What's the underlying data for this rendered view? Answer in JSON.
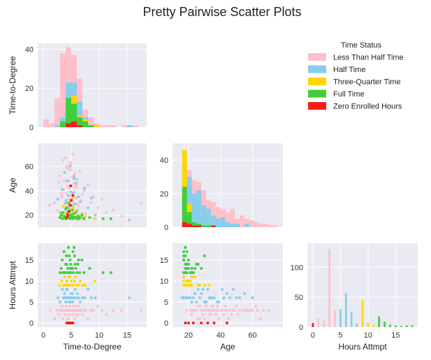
{
  "chart_data": {
    "type": "pairplot",
    "title": "Pretty Pairwise Scatter Plots",
    "variables": [
      "Time-to-Degree",
      "Age",
      "Hours Attmpt"
    ],
    "axis_ranges": {
      "Time-to-Degree": [
        -1,
        18.5
      ],
      "Age": [
        10,
        79
      ],
      "Hours Attmpt": [
        -1,
        19
      ]
    },
    "ticks": {
      "Time-to-Degree": [
        0,
        5,
        10,
        15
      ],
      "Age": [
        20,
        40,
        60
      ],
      "Hours Attmpt": [
        0,
        5,
        10,
        15
      ]
    },
    "grid": true,
    "legend": {
      "title": "Time Status",
      "placement": "top-right",
      "entries": [
        {
          "name": "Less Than Half Time",
          "color": "#ffc0cb"
        },
        {
          "name": "Half Time",
          "color": "#87ceeb"
        },
        {
          "name": "Three-Quarter Time",
          "color": "#ffd700"
        },
        {
          "name": "Full Time",
          "color": "#3ecf3e"
        },
        {
          "name": "Zero Enrolled Hours",
          "color": "#ff1a1a"
        }
      ]
    },
    "diagonal_histograms": {
      "Time-to-Degree": {
        "ylim": [
          0,
          43
        ],
        "yticks": [
          0,
          20,
          40
        ],
        "bins": [
          0,
          1,
          2,
          3,
          4,
          5,
          6,
          7,
          8,
          9,
          10,
          11,
          12,
          13,
          14,
          15,
          16,
          17,
          18
        ],
        "series": [
          {
            "name": "Less Than Half Time",
            "counts": [
              4,
              2,
              15,
              38,
              41,
              37,
              25,
              9,
              5,
              2,
              1,
              1,
              1,
              0,
              1,
              0,
              1,
              0
            ]
          },
          {
            "name": "Half Time",
            "counts": [
              0,
              0,
              1,
              5,
              23,
              23,
              13,
              5,
              1,
              0,
              0,
              0,
              0,
              0,
              0,
              1,
              0,
              0
            ]
          },
          {
            "name": "Three-Quarter Time",
            "counts": [
              0,
              0,
              0,
              1,
              9,
              16,
              6,
              4,
              0,
              1,
              0,
              0,
              0,
              0,
              0,
              0,
              0,
              0
            ]
          },
          {
            "name": "Full Time",
            "counts": [
              0,
              0,
              0,
              3,
              15,
              12,
              5,
              3,
              1,
              0,
              0,
              0,
              0,
              0,
              0,
              0,
              0,
              0
            ]
          },
          {
            "name": "Zero Enrolled Hours",
            "counts": [
              0,
              0,
              0,
              0,
              2,
              3,
              1,
              0,
              0,
              0,
              0,
              0,
              0,
              0,
              0,
              0,
              0,
              0
            ]
          }
        ]
      },
      "Age": {
        "ylim": [
          0,
          50
        ],
        "yticks": [
          0,
          20,
          40
        ],
        "bins": [
          16,
          19,
          22,
          25,
          28,
          31,
          34,
          37,
          40,
          43,
          46,
          49,
          52,
          55,
          58,
          61,
          64,
          67,
          70,
          73,
          76
        ],
        "series": [
          {
            "name": "Less Than Half Time",
            "counts": [
              38,
              34,
              28,
              27,
              22,
              16,
              15,
              12,
              11,
              9,
              11,
              5,
              7,
              5,
              4,
              3,
              2,
              2,
              1,
              1
            ]
          },
          {
            "name": "Half Time",
            "counts": [
              33,
              30,
              20,
              22,
              13,
              11,
              7,
              5,
              6,
              3,
              2,
              2,
              0,
              2,
              0,
              0,
              0,
              0,
              0,
              0
            ]
          },
          {
            "name": "Three-Quarter Time",
            "counts": [
              46,
              14,
              3,
              2,
              1,
              0,
              0,
              0,
              0,
              0,
              0,
              0,
              0,
              0,
              0,
              0,
              0,
              0,
              0,
              0
            ]
          },
          {
            "name": "Full Time",
            "counts": [
              24,
              9,
              3,
              2,
              1,
              1,
              0,
              0,
              0,
              0,
              0,
              0,
              0,
              0,
              0,
              0,
              0,
              0,
              0,
              0
            ]
          },
          {
            "name": "Zero Enrolled Hours",
            "counts": [
              3,
              2,
              1,
              1,
              0,
              0,
              1,
              0,
              0,
              0,
              0,
              0,
              0,
              0,
              0,
              0,
              0,
              0,
              0,
              0
            ]
          }
        ]
      },
      "Hours Attmpt": {
        "ylim": [
          0,
          140
        ],
        "yticks": [
          0,
          50,
          100
        ],
        "series": [
          {
            "name": "Less Than Half Time",
            "x": [
              1,
              2,
              3,
              4
            ],
            "counts": [
              15,
              12,
              130,
              28
            ]
          },
          {
            "name": "Half Time",
            "x": [
              5,
              6,
              7,
              8
            ],
            "counts": [
              30,
              57,
              26,
              6
            ]
          },
          {
            "name": "Three-Quarter Time",
            "x": [
              9,
              10,
              11
            ],
            "counts": [
              45,
              7,
              4
            ]
          },
          {
            "name": "Full Time",
            "x": [
              12,
              13,
              14,
              15,
              16,
              17,
              18
            ],
            "counts": [
              18,
              9,
              4,
              3,
              2,
              3,
              3
            ]
          },
          {
            "name": "Zero Enrolled Hours",
            "x": [
              0
            ],
            "counts": [
              7
            ]
          }
        ]
      }
    },
    "scatter": {
      "Less Than Half Time": {
        "ttd": [
          1.2,
          2.0,
          2.5,
          2.8,
          3.0,
          3.1,
          3.3,
          3.5,
          3.6,
          3.8,
          3.9,
          4.0,
          4.1,
          4.2,
          4.3,
          4.4,
          4.5,
          4.6,
          4.7,
          4.8,
          4.9,
          5.0,
          5.1,
          5.2,
          5.3,
          5.4,
          5.5,
          5.6,
          5.7,
          5.8,
          5.9,
          6.0,
          6.1,
          6.3,
          6.5,
          6.8,
          7.0,
          7.3,
          7.6,
          8.0,
          8.5,
          9.0,
          9.8,
          10.5,
          11.3,
          12.5,
          14.0,
          17.5,
          4.2,
          4.6,
          5.0,
          5.4,
          3.4,
          3.7,
          6.2,
          4.9,
          5.3,
          4.4,
          3.2,
          5.7
        ],
        "age": [
          28,
          30,
          24,
          47,
          52,
          22,
          35,
          65,
          41,
          55,
          29,
          67,
          38,
          60,
          44,
          26,
          58,
          33,
          48,
          62,
          25,
          57,
          36,
          51,
          70,
          31,
          46,
          39,
          54,
          23,
          34,
          43,
          49,
          27,
          56,
          32,
          37,
          40,
          21,
          45,
          30,
          35,
          26,
          33,
          22,
          24,
          19,
          30,
          59,
          42,
          63,
          50,
          36,
          48,
          29,
          33,
          21,
          27,
          38,
          43
        ],
        "hrs": [
          3,
          1,
          3,
          2,
          3,
          3,
          4,
          1,
          3,
          3,
          2,
          3,
          4,
          3,
          3,
          1,
          3,
          2,
          3,
          4,
          3,
          3,
          3,
          2,
          3,
          4,
          3,
          1,
          3,
          3,
          2,
          3,
          3,
          4,
          3,
          3,
          2,
          3,
          3,
          1,
          3,
          3,
          4,
          3,
          2,
          3,
          3,
          3,
          3,
          2,
          3,
          4,
          3,
          3,
          2,
          3,
          3,
          1,
          3,
          4
        ]
      },
      "Half Time": {
        "ttd": [
          2.6,
          3.0,
          3.4,
          3.6,
          3.8,
          4.0,
          4.2,
          4.3,
          4.5,
          4.6,
          4.8,
          5.0,
          5.1,
          5.3,
          5.5,
          5.7,
          5.9,
          6.1,
          6.3,
          6.6,
          7.0,
          7.4,
          8.0,
          8.6,
          9.3,
          15.4,
          4.4,
          4.9,
          5.2,
          5.6,
          3.9,
          4.1
        ],
        "age": [
          33,
          22,
          41,
          27,
          55,
          30,
          19,
          48,
          36,
          25,
          60,
          44,
          21,
          38,
          52,
          29,
          46,
          24,
          35,
          31,
          18,
          42,
          26,
          34,
          20,
          16,
          23,
          39,
          28,
          50,
          17,
          32
        ],
        "hrs": [
          6,
          5,
          8,
          6,
          7,
          5,
          6,
          8,
          6,
          5,
          6,
          7,
          6,
          5,
          6,
          8,
          6,
          7,
          6,
          5,
          6,
          6,
          8,
          6,
          6,
          6,
          6,
          5,
          7,
          6,
          6,
          8
        ]
      },
      "Three-Quarter Time": {
        "ttd": [
          2.9,
          3.3,
          3.6,
          3.8,
          4.0,
          4.2,
          4.4,
          4.6,
          4.8,
          5.0,
          5.2,
          5.4,
          5.6,
          5.8,
          6.0,
          6.3,
          6.6,
          7.0,
          7.5,
          9.2,
          4.5,
          5.1
        ],
        "age": [
          18,
          20,
          27,
          17,
          22,
          19,
          30,
          18,
          24,
          21,
          17,
          26,
          19,
          23,
          18,
          20,
          17,
          21,
          19,
          17,
          22,
          33
        ],
        "hrs": [
          9,
          10,
          9,
          11,
          9,
          10,
          9,
          9,
          11,
          10,
          9,
          9,
          10,
          11,
          9,
          9,
          10,
          9,
          9,
          10,
          11,
          9
        ]
      },
      "Full Time": {
        "ttd": [
          3.0,
          3.2,
          3.4,
          3.5,
          3.7,
          3.9,
          4.0,
          4.1,
          4.3,
          4.4,
          4.5,
          4.7,
          4.8,
          4.9,
          5.0,
          5.1,
          5.3,
          5.4,
          5.6,
          5.8,
          6.0,
          6.2,
          6.5,
          6.9,
          7.3,
          8.3,
          10.7,
          12.1,
          4.2,
          4.6,
          5.2,
          5.5,
          3.8,
          6.3,
          4.9,
          5.7
        ],
        "age": [
          18,
          20,
          17,
          22,
          19,
          18,
          25,
          17,
          21,
          19,
          18,
          23,
          17,
          20,
          18,
          19,
          17,
          21,
          18,
          22,
          17,
          19,
          18,
          20,
          17,
          18,
          17,
          17,
          26,
          30,
          24,
          18,
          19,
          17,
          28,
          18
        ],
        "hrs": [
          12,
          13,
          15,
          12,
          17,
          12,
          14,
          16,
          12,
          13,
          18,
          12,
          15,
          14,
          12,
          13,
          17,
          12,
          16,
          13,
          12,
          14,
          12,
          15,
          12,
          13,
          12,
          12,
          14,
          16,
          13,
          18,
          12,
          15,
          13,
          14
        ]
      },
      "Zero Enrolled Hours": {
        "ttd": [
          4.2,
          4.4,
          4.6,
          4.8,
          5.0,
          5.3,
          4.9
        ],
        "age": [
          18,
          20,
          23,
          28,
          32,
          36,
          44
        ],
        "hrs": [
          0,
          0,
          0,
          0,
          0,
          0,
          0
        ]
      }
    }
  }
}
